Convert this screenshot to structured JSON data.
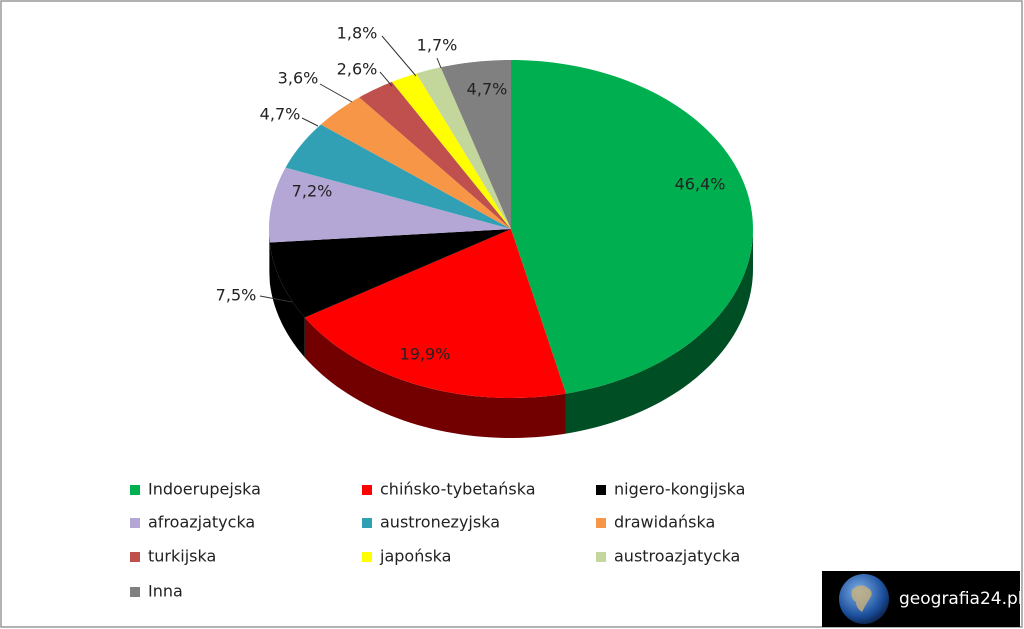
{
  "chart_data": {
    "type": "pie3d",
    "categories": [
      "Indoerupejska",
      "chińsko-tybetańska",
      "nigero-kongijska",
      "afroazjatycka",
      "austronezyjska",
      "drawidańska",
      "turkijska",
      "japońska",
      "austroazjatycka",
      "Inna"
    ],
    "values": [
      46.4,
      19.9,
      7.5,
      7.2,
      4.7,
      3.6,
      2.6,
      1.8,
      1.7,
      4.7
    ],
    "value_labels": [
      "46,4%",
      "19,9%",
      "7,5%",
      "7,2%",
      "4,7%",
      "3,6%",
      "2,6%",
      "1,8%",
      "1,7%",
      "4,7%"
    ],
    "colors": [
      "#00b050",
      "#ff0000",
      "#000000",
      "#b4a7d6",
      "#31a0b5",
      "#f79646",
      "#c0504d",
      "#ffff00",
      "#c3d69b",
      "#808080"
    ],
    "legend": "bottom"
  },
  "watermark": "geografia24.pl"
}
